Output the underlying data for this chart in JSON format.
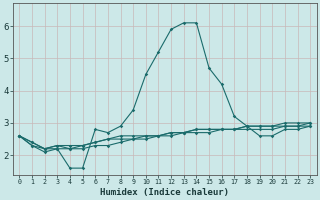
{
  "xlabel": "Humidex (Indice chaleur)",
  "background_color": "#cce8e8",
  "grid_color": "#c8b8b8",
  "line_color": "#1a6b6b",
  "xlim": [
    -0.5,
    23.5
  ],
  "ylim": [
    1.4,
    6.7
  ],
  "yticks": [
    2,
    3,
    4,
    5,
    6
  ],
  "xticks": [
    0,
    1,
    2,
    3,
    4,
    5,
    6,
    7,
    8,
    9,
    10,
    11,
    12,
    13,
    14,
    15,
    16,
    17,
    18,
    19,
    20,
    21,
    22,
    23
  ],
  "series": [
    [
      2.6,
      2.3,
      2.2,
      2.2,
      1.6,
      1.6,
      2.8,
      2.7,
      2.9,
      3.4,
      4.5,
      5.2,
      5.9,
      6.1,
      6.1,
      4.7,
      4.2,
      3.2,
      2.9,
      2.6,
      2.6,
      2.8,
      2.8,
      2.9
    ],
    [
      2.6,
      2.3,
      2.1,
      2.2,
      2.2,
      2.3,
      2.4,
      2.5,
      2.6,
      2.6,
      2.6,
      2.6,
      2.7,
      2.7,
      2.8,
      2.8,
      2.8,
      2.8,
      2.9,
      2.9,
      2.9,
      3.0,
      3.0,
      3.0
    ],
    [
      2.6,
      2.4,
      2.2,
      2.3,
      2.2,
      2.2,
      2.3,
      2.3,
      2.4,
      2.5,
      2.5,
      2.6,
      2.6,
      2.7,
      2.7,
      2.7,
      2.8,
      2.8,
      2.8,
      2.8,
      2.8,
      2.9,
      2.9,
      2.9
    ],
    [
      2.6,
      2.4,
      2.2,
      2.3,
      2.3,
      2.3,
      2.4,
      2.5,
      2.5,
      2.5,
      2.6,
      2.6,
      2.7,
      2.7,
      2.8,
      2.8,
      2.8,
      2.8,
      2.9,
      2.9,
      2.9,
      2.9,
      2.9,
      3.0
    ]
  ]
}
